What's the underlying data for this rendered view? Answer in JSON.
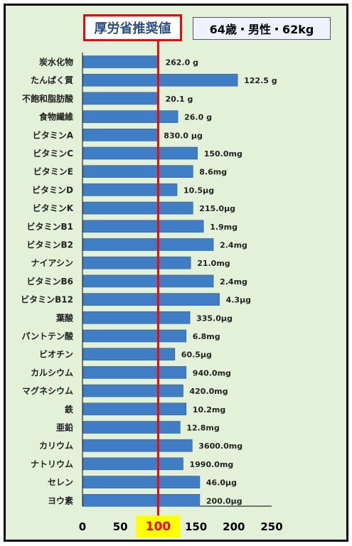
{
  "header": {
    "title": "厚労省推奨値",
    "profile": "64歳・男性・62kg"
  },
  "colors": {
    "bar": "#3f7ec4",
    "reference_line": "#ff0000",
    "highlight_fill": "#ffff00",
    "background": "#e2f1d7"
  },
  "chart_data": {
    "type": "bar",
    "orientation": "horizontal",
    "xlim": [
      0,
      250
    ],
    "ticks": [
      "0",
      "50",
      "100",
      "150",
      "200",
      "250"
    ],
    "reference_value": 100,
    "grid": false,
    "categories": [
      "炭水化物",
      "たんぱく質",
      "不飽和脂肪酸",
      "食物繊維",
      "ビタミンA",
      "ビタミンC",
      "ビタミンE",
      "ビタミンD",
      "ビタミンK",
      "ビタミンB1",
      "ビタミンB2",
      "ナイアシン",
      "ビタミンB6",
      "ビタミンB12",
      "葉酸",
      "パントテン酸",
      "ビオチン",
      "カルシウム",
      "マグネシウム",
      "鉄",
      "亜鉛",
      "カリウム",
      "ナトリウム",
      "セレン",
      "ヨウ素"
    ],
    "values": [
      101,
      205,
      101,
      126,
      99,
      152,
      146,
      125,
      146,
      160,
      173,
      143,
      173,
      181,
      142,
      137,
      122,
      137,
      133,
      137,
      129,
      145,
      133,
      155,
      155
    ],
    "labels": [
      "262.0 g",
      "122.5 g",
      "20.1 g",
      "26.0 g",
      "830.0 μg",
      "150.0mg",
      "8.6mg",
      "10.5μg",
      "215.0μg",
      "1.9mg",
      "2.4mg",
      "21.0mg",
      "2.4mg",
      "4.3μg",
      "335.0μg",
      "6.8mg",
      "60.5μg",
      "940.0mg",
      "420.0mg",
      "10.2mg",
      "12.8mg",
      "3600.0mg",
      "1990.0mg",
      "46.0μg",
      "200.0μg"
    ]
  }
}
